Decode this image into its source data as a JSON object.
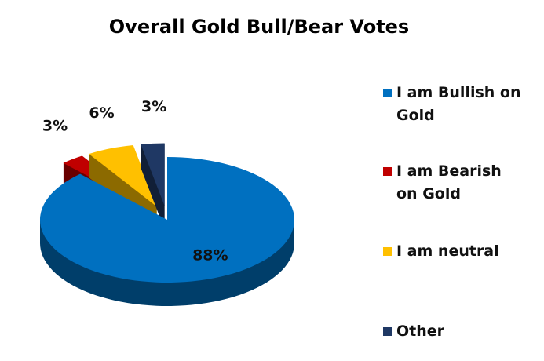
{
  "chart_data": {
    "type": "pie",
    "title": "Overall Gold Bull/Bear Votes",
    "categories": [
      "I am Bullish on Gold",
      "I am Bearish on Gold",
      "I am neutral",
      "Other"
    ],
    "values": [
      88,
      3,
      6,
      3
    ],
    "value_labels": [
      "88%",
      "3%",
      "6%",
      "3%"
    ],
    "colors": [
      "#0070c0",
      "#c00000",
      "#ffc000",
      "#1f3864"
    ],
    "legend": "right"
  }
}
